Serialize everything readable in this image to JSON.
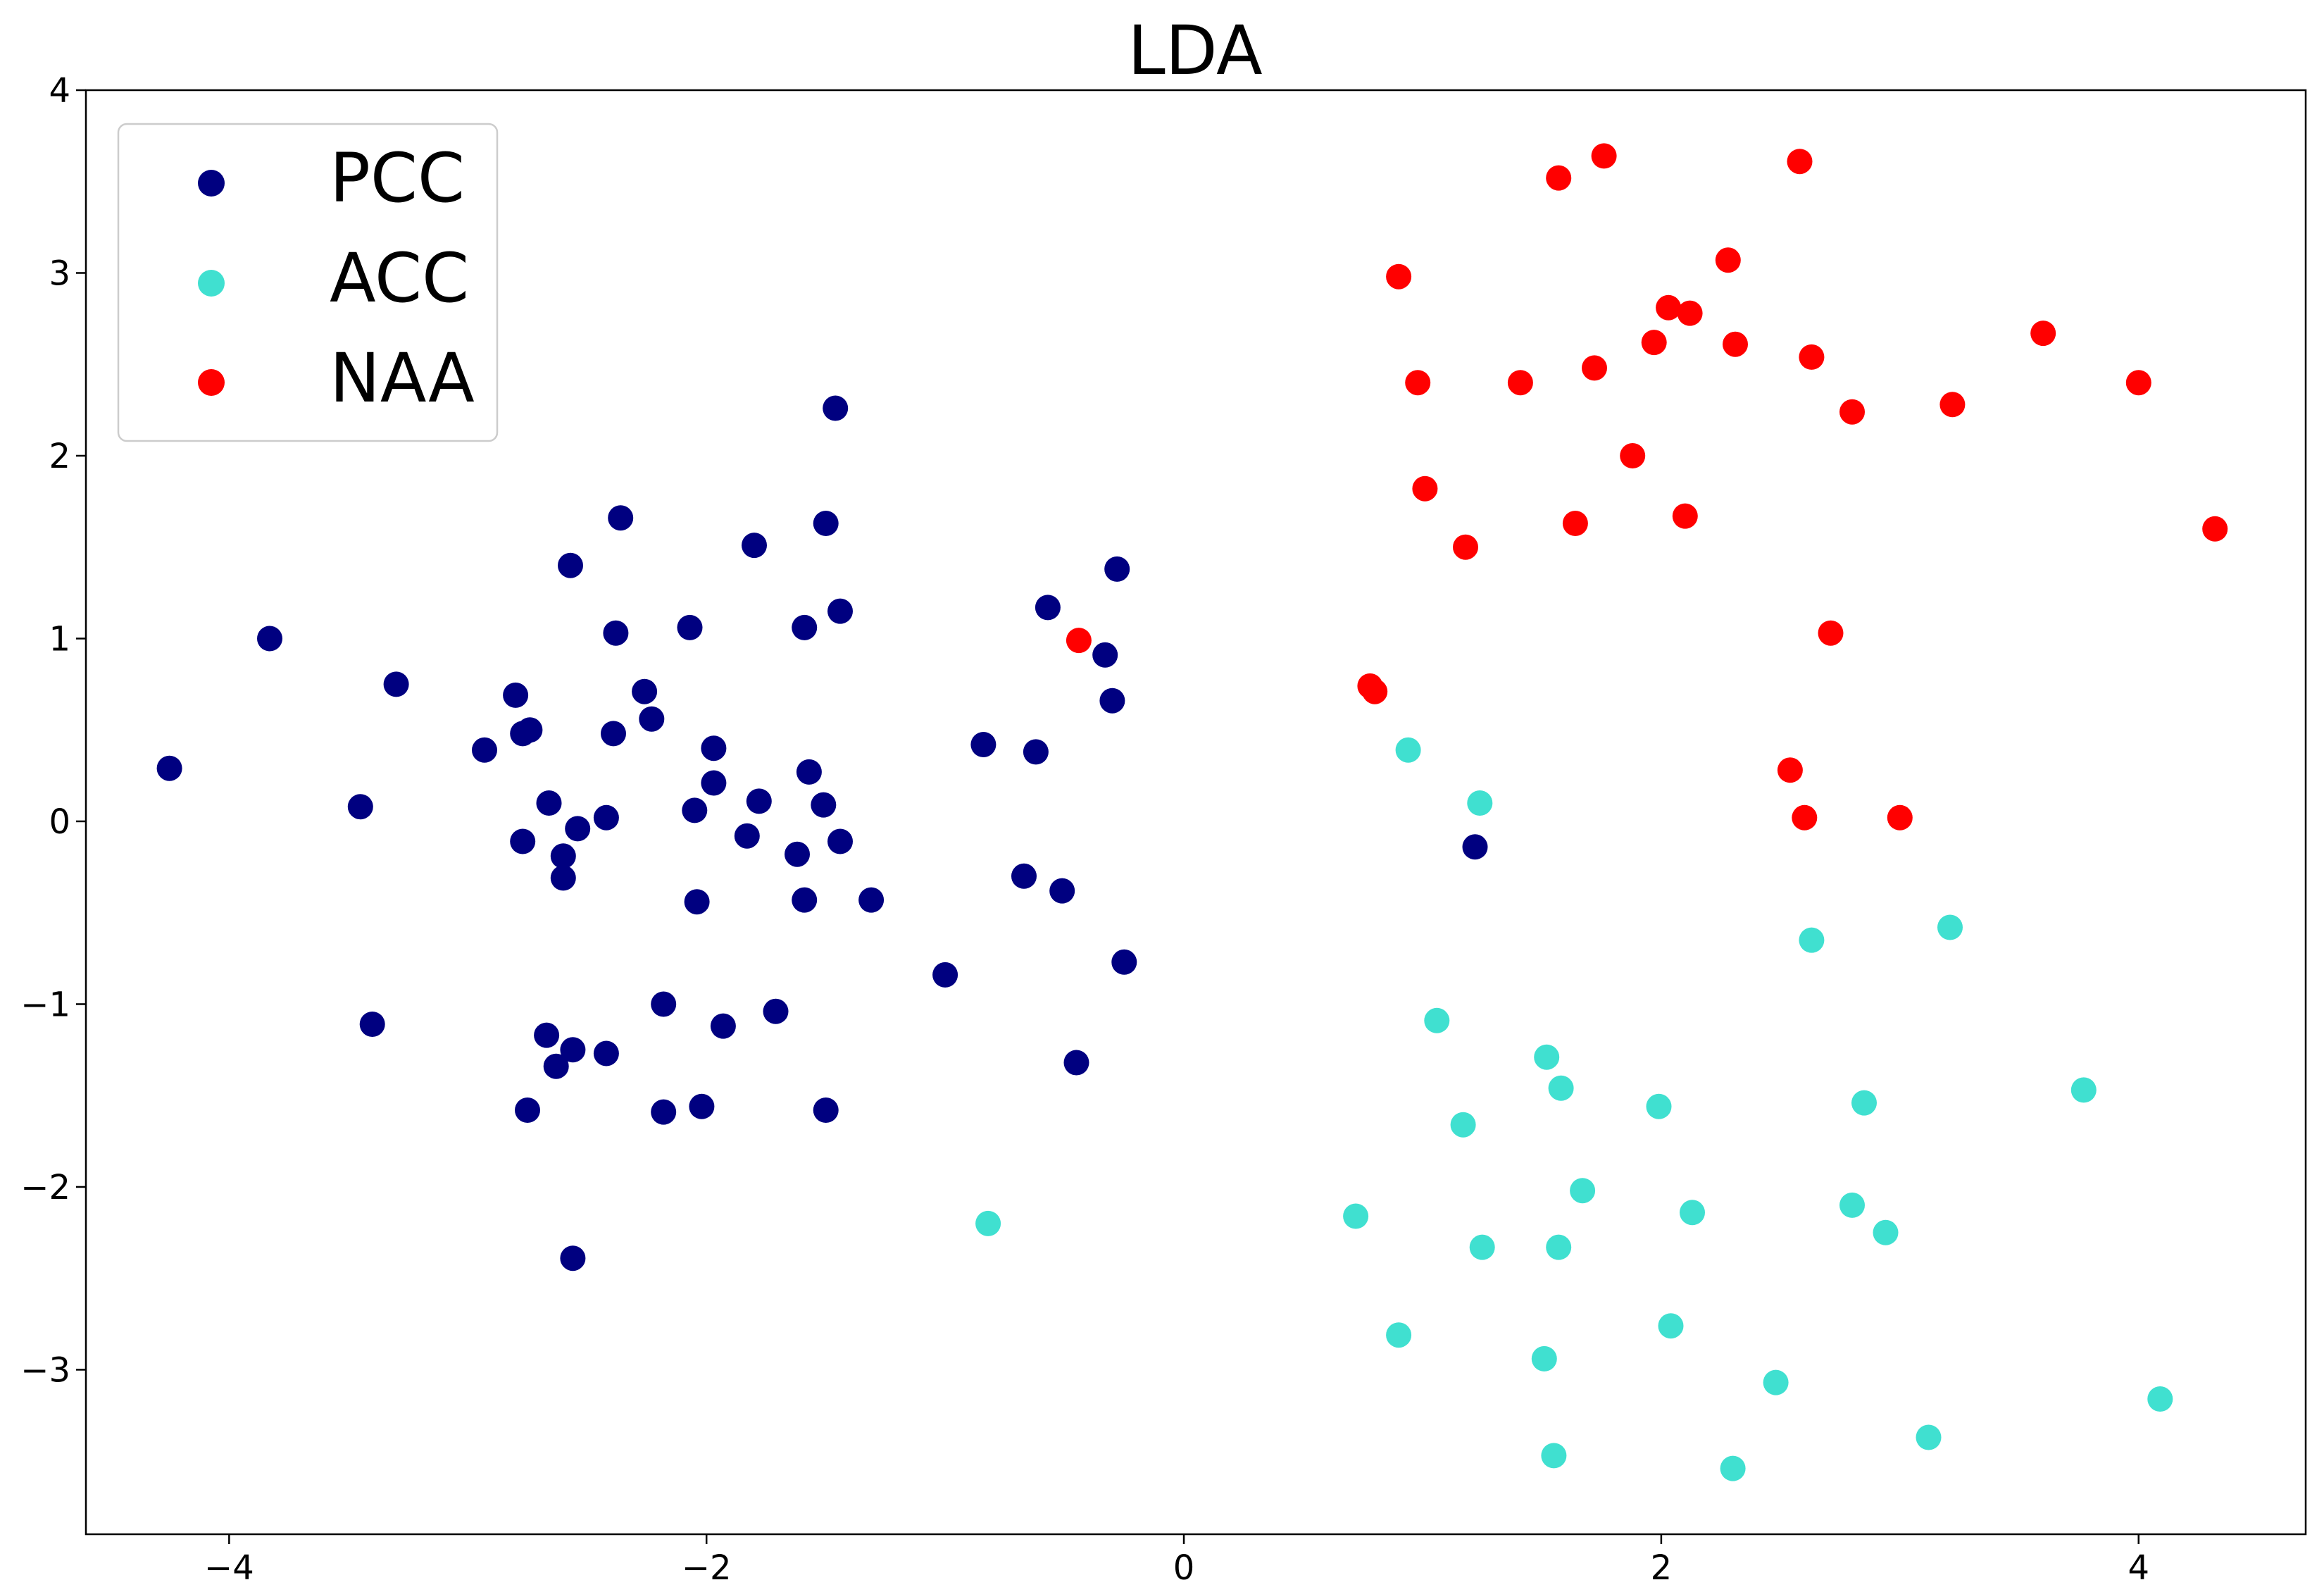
{
  "chart_data": {
    "type": "scatter",
    "title": "LDA",
    "xlabel": "",
    "ylabel": "",
    "xlim": [
      -4.6,
      4.7
    ],
    "ylim": [
      -3.9,
      4.0
    ],
    "xticks": [
      -4,
      -2,
      0,
      2,
      4
    ],
    "xtick_labels": [
      "−4",
      "−2",
      "0",
      "2",
      "4"
    ],
    "yticks": [
      -3,
      -2,
      -1,
      0,
      1,
      2,
      3,
      4
    ],
    "ytick_labels": [
      "−3",
      "−2",
      "−1",
      "0",
      "1",
      "2",
      "3",
      "4"
    ],
    "grid": false,
    "legend_position": "upper-left",
    "series": [
      {
        "name": "PCC",
        "color": "#000080",
        "points": [
          [
            -4.25,
            0.29
          ],
          [
            -3.83,
            1.0
          ],
          [
            -3.45,
            0.08
          ],
          [
            -3.4,
            -1.11
          ],
          [
            -3.3,
            0.75
          ],
          [
            -2.93,
            0.39
          ],
          [
            -2.8,
            0.69
          ],
          [
            -2.77,
            -0.11
          ],
          [
            -2.77,
            0.48
          ],
          [
            -2.74,
            0.5
          ],
          [
            -2.75,
            -1.58
          ],
          [
            -2.67,
            -1.17
          ],
          [
            -2.66,
            0.1
          ],
          [
            -2.63,
            -1.34
          ],
          [
            -2.6,
            -0.19
          ],
          [
            -2.6,
            -0.31
          ],
          [
            -2.57,
            1.4
          ],
          [
            -2.56,
            -1.25
          ],
          [
            -2.56,
            -2.39
          ],
          [
            -2.54,
            -0.04
          ],
          [
            -2.42,
            0.02
          ],
          [
            -2.42,
            -1.27
          ],
          [
            -2.39,
            0.48
          ],
          [
            -2.38,
            1.03
          ],
          [
            -2.36,
            1.66
          ],
          [
            -2.26,
            0.71
          ],
          [
            -2.23,
            0.56
          ],
          [
            -2.18,
            -1.0
          ],
          [
            -2.18,
            -1.59
          ],
          [
            -2.07,
            1.06
          ],
          [
            -2.05,
            0.06
          ],
          [
            -2.04,
            -0.44
          ],
          [
            -2.02,
            -1.56
          ],
          [
            -1.97,
            0.4
          ],
          [
            -1.97,
            0.21
          ],
          [
            -1.93,
            -1.12
          ],
          [
            -1.83,
            -0.08
          ],
          [
            -1.8,
            1.51
          ],
          [
            -1.78,
            0.11
          ],
          [
            -1.71,
            -1.04
          ],
          [
            -1.62,
            -0.18
          ],
          [
            -1.59,
            1.06
          ],
          [
            -1.59,
            -0.43
          ],
          [
            -1.57,
            0.27
          ],
          [
            -1.51,
            0.09
          ],
          [
            -1.5,
            1.63
          ],
          [
            -1.5,
            -1.58
          ],
          [
            -1.46,
            2.26
          ],
          [
            -1.44,
            -0.11
          ],
          [
            -1.44,
            1.15
          ],
          [
            -1.31,
            -0.43
          ],
          [
            -1.0,
            -0.84
          ],
          [
            -0.84,
            0.42
          ],
          [
            -0.67,
            -0.3
          ],
          [
            -0.62,
            0.38
          ],
          [
            -0.57,
            1.17
          ],
          [
            -0.51,
            -0.38
          ],
          [
            -0.45,
            -1.32
          ],
          [
            -0.33,
            0.91
          ],
          [
            -0.3,
            0.66
          ],
          [
            -0.28,
            1.38
          ],
          [
            -0.25,
            -0.77
          ],
          [
            1.22,
            -0.14
          ]
        ]
      },
      {
        "name": "ACC",
        "color": "#40e0d0",
        "points": [
          [
            -0.82,
            -2.2
          ],
          [
            0.72,
            -2.16
          ],
          [
            0.9,
            -2.81
          ],
          [
            0.94,
            0.39
          ],
          [
            1.06,
            -1.09
          ],
          [
            1.17,
            -1.66
          ],
          [
            1.24,
            0.1
          ],
          [
            1.25,
            -2.33
          ],
          [
            1.51,
            -2.94
          ],
          [
            1.52,
            -1.29
          ],
          [
            1.55,
            -3.47
          ],
          [
            1.57,
            -2.33
          ],
          [
            1.58,
            -1.46
          ],
          [
            1.67,
            -2.02
          ],
          [
            1.99,
            -1.56
          ],
          [
            2.04,
            -2.76
          ],
          [
            2.13,
            -2.14
          ],
          [
            2.3,
            -3.54
          ],
          [
            2.48,
            -3.07
          ],
          [
            2.63,
            -0.65
          ],
          [
            2.8,
            -2.1
          ],
          [
            2.85,
            -1.54
          ],
          [
            2.94,
            -2.25
          ],
          [
            3.12,
            -3.37
          ],
          [
            3.21,
            -0.58
          ],
          [
            3.77,
            -1.47
          ],
          [
            4.09,
            -3.16
          ]
        ]
      },
      {
        "name": "NAA",
        "color": "#ff0000",
        "points": [
          [
            -0.44,
            0.99
          ],
          [
            0.78,
            0.74
          ],
          [
            0.8,
            0.71
          ],
          [
            0.9,
            2.98
          ],
          [
            0.98,
            2.4
          ],
          [
            1.01,
            1.82
          ],
          [
            1.18,
            1.5
          ],
          [
            1.41,
            2.4
          ],
          [
            1.57,
            3.52
          ],
          [
            1.64,
            1.63
          ],
          [
            1.72,
            2.48
          ],
          [
            1.76,
            3.64
          ],
          [
            1.88,
            2.0
          ],
          [
            1.97,
            2.62
          ],
          [
            2.03,
            2.81
          ],
          [
            2.1,
            1.67
          ],
          [
            2.12,
            2.78
          ],
          [
            2.28,
            3.07
          ],
          [
            2.31,
            2.61
          ],
          [
            2.54,
            0.28
          ],
          [
            2.58,
            3.61
          ],
          [
            2.6,
            0.02
          ],
          [
            2.63,
            2.54
          ],
          [
            2.71,
            1.03
          ],
          [
            2.8,
            2.24
          ],
          [
            3.0,
            0.02
          ],
          [
            3.22,
            2.28
          ],
          [
            3.6,
            2.67
          ],
          [
            4.0,
            2.4
          ],
          [
            4.32,
            1.6
          ]
        ]
      }
    ]
  }
}
